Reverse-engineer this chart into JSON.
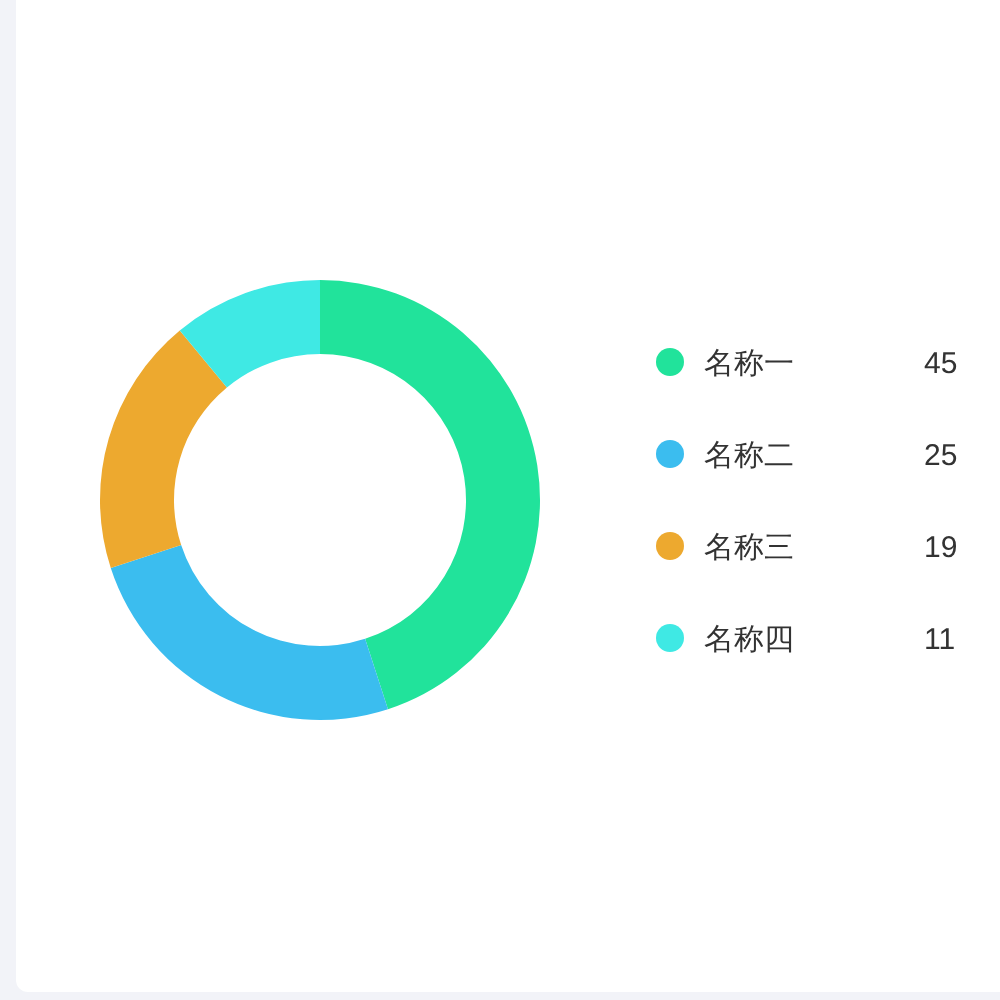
{
  "chart_data": {
    "type": "donut",
    "categories": [
      "名称一",
      "名称二",
      "名称三",
      "名称四"
    ],
    "values": [
      45,
      25,
      19,
      11
    ],
    "colors": [
      "#21e39b",
      "#3bbdef",
      "#eda92f",
      "#3fe9e4"
    ],
    "legend": "right",
    "data_labels": true
  }
}
